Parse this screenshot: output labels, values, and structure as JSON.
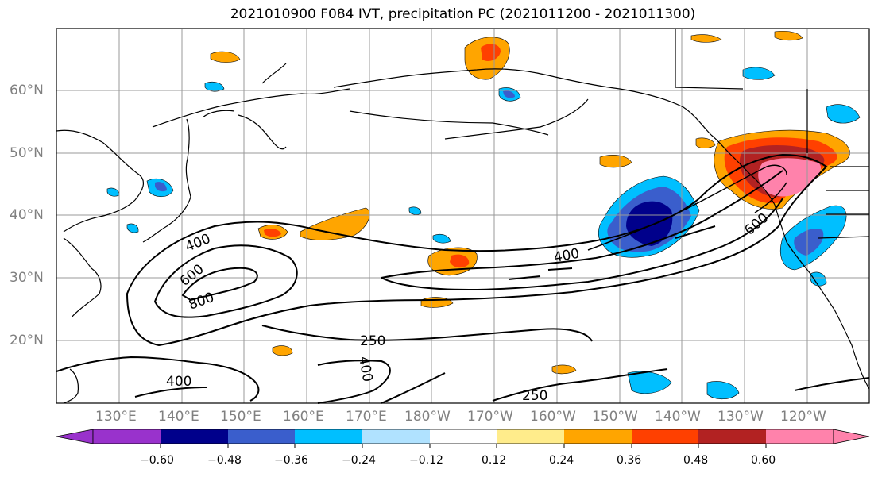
{
  "title": "2021010900 F084 IVT, precipitation PC (2021011200 - 2021011300)",
  "lat_labels": [
    "60°N",
    "50°N",
    "40°N",
    "30°N",
    "20°N"
  ],
  "lon_labels": [
    "130°E",
    "140°E",
    "150°E",
    "160°E",
    "170°E",
    "180°W",
    "170°W",
    "160°W",
    "150°W",
    "140°W",
    "130°W",
    "120°W"
  ],
  "contour_labels": [
    "400",
    "600",
    "800",
    "250",
    "400",
    "400",
    "250",
    "400",
    "600"
  ],
  "colorbar": {
    "ticks": [
      "−0.60",
      "−0.48",
      "−0.36",
      "−0.24",
      "−0.12",
      "0.12",
      "0.24",
      "0.36",
      "0.48",
      "0.60"
    ],
    "colors": [
      "#9932cc",
      "#00008b",
      "#3a5ecc",
      "#00bfff",
      "#b0e2ff",
      "#ffffff",
      "#ffec8b",
      "#ffa500",
      "#ff4000",
      "#b22222",
      "#ff82ab"
    ]
  },
  "colors": {
    "neg_strong": "#00008b",
    "neg_mid": "#3a5ecc",
    "neg_light": "#00bfff",
    "neg_pale": "#b0e2ff",
    "pos_pale": "#ffec8b",
    "pos_light": "#ffa500",
    "pos_mid": "#ff4000",
    "pos_strong": "#b22222",
    "pos_max": "#ff82ab",
    "gridline": "#999999",
    "coast": "#000000"
  }
}
